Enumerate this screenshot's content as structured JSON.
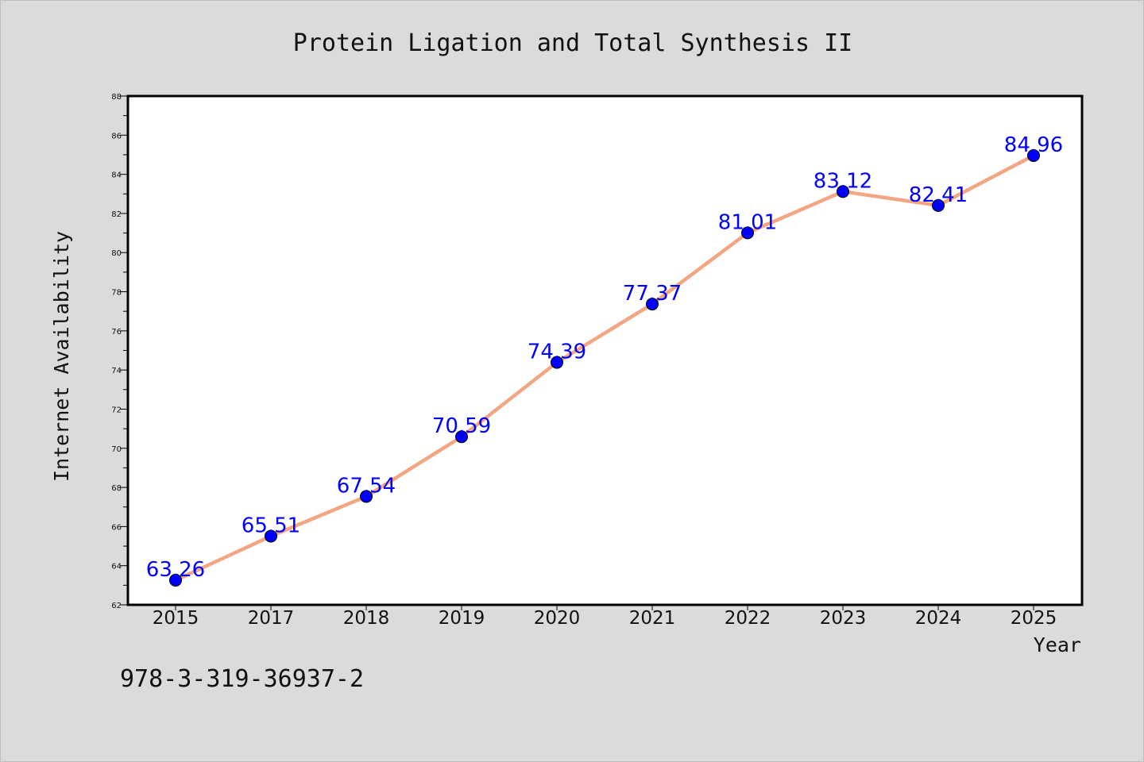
{
  "chart_data": {
    "type": "line",
    "title": "Protein Ligation and Total Synthesis II",
    "xlabel": "Year",
    "ylabel": "Internet Availability",
    "categories": [
      "2015",
      "2017",
      "2018",
      "2019",
      "2020",
      "2021",
      "2022",
      "2023",
      "2024",
      "2025"
    ],
    "series": [
      {
        "values": [
          63.26,
          65.51,
          67.54,
          70.59,
          74.39,
          77.37,
          81.01,
          83.12,
          82.41,
          84.96
        ],
        "line_color": "#f4a582",
        "marker_color": "#0000ff"
      }
    ],
    "data_labels": [
      "63.26",
      "65.51",
      "67.54",
      "70.59",
      "74.39",
      "77.37",
      "81.01",
      "83.12",
      "82.41",
      "84.96"
    ],
    "ylim": [
      62,
      88
    ],
    "yticks": [
      62,
      64,
      66,
      68,
      70,
      72,
      74,
      76,
      78,
      80,
      82,
      84,
      86,
      88
    ],
    "grid": false,
    "legend": "none",
    "data_label_color": "#0000ff"
  },
  "footnote": "978-3-319-36937-2"
}
